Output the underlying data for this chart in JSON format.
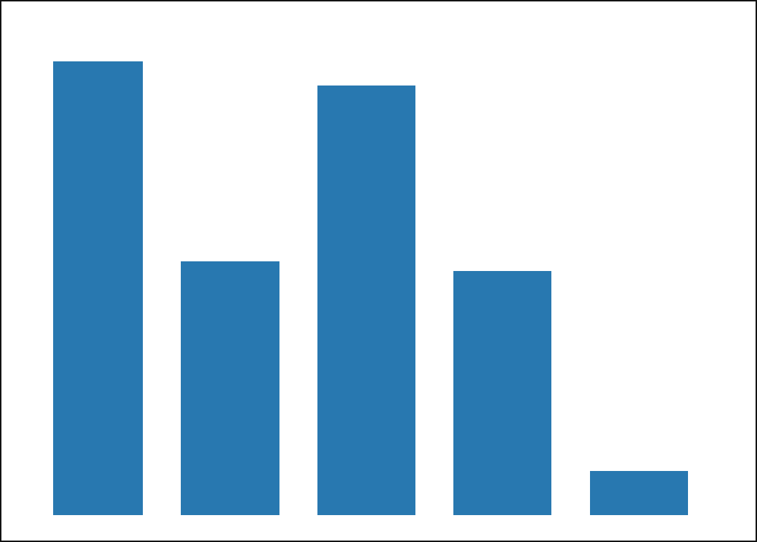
{
  "values": [
    0.93,
    0.52,
    0.88,
    0.5,
    0.09
  ],
  "bar_color": "#2878b0",
  "background_color": "#ffffff",
  "border_color": "#111111",
  "xlim": [
    -0.3,
    4.7
  ],
  "ylim": [
    0,
    1.0
  ],
  "bar_width": 0.72,
  "figsize": [
    10.97,
    7.86
  ],
  "dpi": 100
}
